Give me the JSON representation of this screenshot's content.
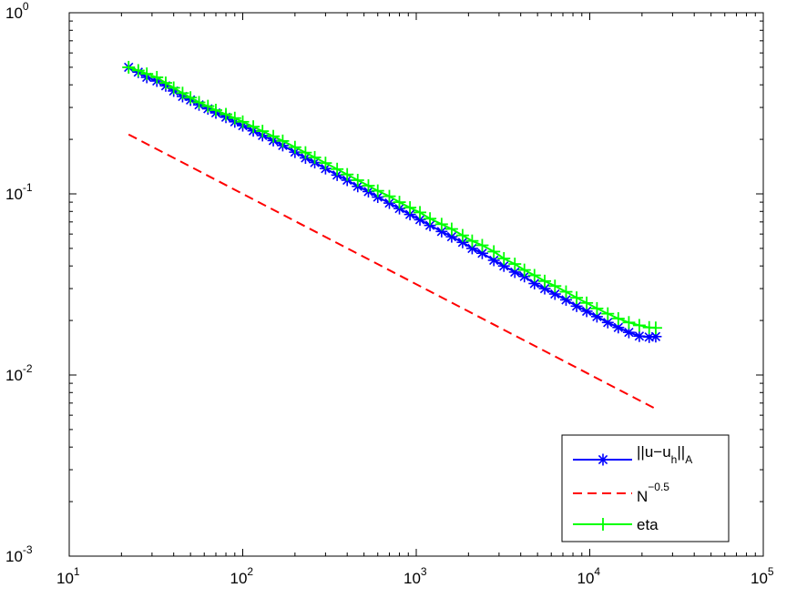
{
  "chart_data": {
    "type": "line",
    "title": "",
    "xlabel": "",
    "ylabel": "",
    "xscale": "log",
    "yscale": "log",
    "xlim": [
      10,
      100000
    ],
    "ylim": [
      0.001,
      1
    ],
    "grid": false,
    "legend_position": "bottom-right",
    "x_ticks": [
      {
        "base": "10",
        "exp": "1"
      },
      {
        "base": "10",
        "exp": "2"
      },
      {
        "base": "10",
        "exp": "3"
      },
      {
        "base": "10",
        "exp": "4"
      },
      {
        "base": "10",
        "exp": "5"
      }
    ],
    "y_ticks": [
      {
        "base": "10",
        "exp": "-3"
      },
      {
        "base": "10",
        "exp": "-2"
      },
      {
        "base": "10",
        "exp": "-1"
      },
      {
        "base": "10",
        "exp": "0"
      }
    ],
    "series": [
      {
        "key": "error",
        "legend_main": "||u−u",
        "legend_sub1": "h",
        "legend_mid": "||",
        "legend_sub2": "A",
        "color": "#0000ff",
        "style": "solid",
        "marker": "asterisk",
        "x": [
          22,
          25,
          28,
          32,
          36,
          40,
          45,
          50,
          56,
          63,
          70,
          80,
          90,
          100,
          115,
          130,
          150,
          170,
          200,
          230,
          260,
          300,
          350,
          400,
          460,
          530,
          600,
          700,
          800,
          920,
          1050,
          1200,
          1400,
          1600,
          1850,
          2100,
          2400,
          2800,
          3200,
          3700,
          4200,
          4800,
          5500,
          6300,
          7300,
          8400,
          9600,
          11000,
          12700,
          14600,
          16800,
          19300,
          22000,
          24000
        ],
        "y": [
          0.5,
          0.47,
          0.44,
          0.42,
          0.395,
          0.37,
          0.345,
          0.33,
          0.31,
          0.295,
          0.28,
          0.265,
          0.25,
          0.238,
          0.223,
          0.21,
          0.197,
          0.185,
          0.17,
          0.158,
          0.149,
          0.138,
          0.127,
          0.119,
          0.11,
          0.103,
          0.096,
          0.089,
          0.083,
          0.077,
          0.072,
          0.067,
          0.062,
          0.058,
          0.054,
          0.05,
          0.047,
          0.043,
          0.04,
          0.037,
          0.035,
          0.032,
          0.03,
          0.028,
          0.026,
          0.024,
          0.0225,
          0.021,
          0.0195,
          0.0183,
          0.0172,
          0.0164,
          0.0162,
          0.0163
        ]
      },
      {
        "key": "rate",
        "legend_main": "N",
        "legend_sup": "−0.5",
        "color": "#ff0000",
        "style": "dashed",
        "marker": "none",
        "x": [
          22,
          24000
        ],
        "y": [
          0.213,
          0.0065
        ]
      },
      {
        "key": "eta",
        "legend_main": "eta",
        "color": "#00ff00",
        "style": "solid",
        "marker": "plus",
        "x": [
          22,
          25,
          28,
          32,
          36,
          40,
          45,
          50,
          56,
          63,
          70,
          80,
          90,
          100,
          115,
          130,
          150,
          170,
          200,
          230,
          260,
          300,
          350,
          400,
          460,
          530,
          600,
          700,
          800,
          920,
          1050,
          1200,
          1400,
          1600,
          1850,
          2100,
          2400,
          2800,
          3200,
          3700,
          4200,
          4800,
          5500,
          6300,
          7300,
          8400,
          9600,
          11000,
          12700,
          14600,
          16800,
          19300,
          22000,
          24000
        ],
        "y": [
          0.5,
          0.48,
          0.46,
          0.44,
          0.41,
          0.385,
          0.36,
          0.34,
          0.32,
          0.305,
          0.29,
          0.275,
          0.262,
          0.25,
          0.235,
          0.222,
          0.208,
          0.196,
          0.181,
          0.169,
          0.159,
          0.148,
          0.137,
          0.128,
          0.119,
          0.111,
          0.104,
          0.097,
          0.09,
          0.084,
          0.079,
          0.073,
          0.068,
          0.064,
          0.059,
          0.055,
          0.052,
          0.048,
          0.044,
          0.041,
          0.038,
          0.0355,
          0.033,
          0.031,
          0.0288,
          0.0267,
          0.025,
          0.0233,
          0.0218,
          0.0205,
          0.0195,
          0.0188,
          0.0183,
          0.0182
        ]
      }
    ]
  }
}
